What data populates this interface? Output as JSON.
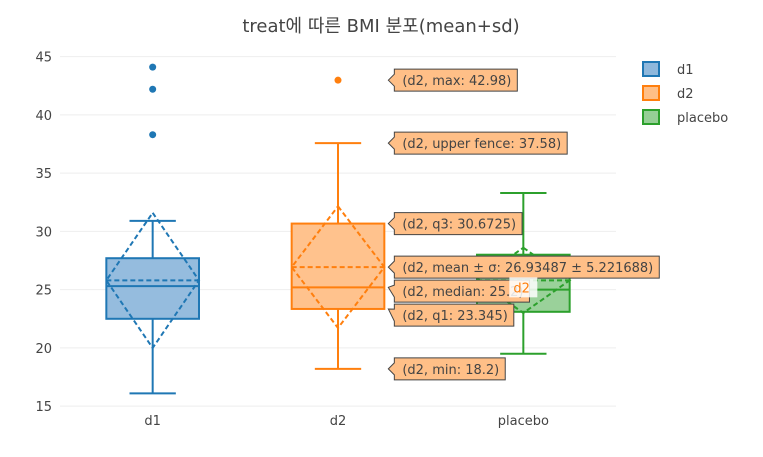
{
  "chart_data": {
    "type": "box",
    "title": "treat에 따른 BMI 분포(mean+sd)",
    "xlabel": "",
    "ylabel": "",
    "categories": [
      "d1",
      "d2",
      "placebo"
    ],
    "ylim": [
      14.5,
      46
    ],
    "yticks": [
      15,
      20,
      25,
      30,
      35,
      40,
      45
    ],
    "grid": true,
    "legend_position": "top-right",
    "series": [
      {
        "name": "d1",
        "color": "#1f77b4",
        "fill": "#8fb8dc",
        "min": 16.1,
        "q1": 22.5,
        "median": 25.3,
        "q3": 27.7,
        "upper_fence": 30.9,
        "mean": 25.8,
        "sd": 5.8,
        "outliers": [
          38.3,
          42.2,
          44.1
        ]
      },
      {
        "name": "d2",
        "color": "#ff7f0e",
        "fill": "#ffbf87",
        "min": 18.2,
        "q1": 23.345,
        "median": 25.2,
        "q3": 30.6725,
        "upper_fence": 37.58,
        "mean": 26.93487,
        "sd": 5.221688,
        "outliers": [
          42.98
        ]
      },
      {
        "name": "placebo",
        "color": "#2ca02c",
        "fill": "#95cf95",
        "min": 19.5,
        "q1": 23.1,
        "median": 25.0,
        "q3": 28.0,
        "upper_fence": 33.3,
        "mean": 25.8,
        "sd": 2.8,
        "outliers": []
      }
    ],
    "hover_labels": [
      {
        "text": "(d2, max: 42.98)",
        "y": 42.98
      },
      {
        "text": "(d2, upper fence: 37.58)",
        "y": 37.58
      },
      {
        "text": "(d2, q3: 30.6725)",
        "y": 30.6725
      },
      {
        "text": "(d2, mean ± σ: 26.93487 ± 5.221688)",
        "y": 26.93487
      },
      {
        "text": "(d2, median: 25.2)",
        "y": 25.2
      },
      {
        "text": "(d2, q1: 23.345)",
        "y": 23.345
      },
      {
        "text": "(d2, min: 18.2)",
        "y": 18.2
      }
    ],
    "hover_trace_name": "d2"
  }
}
